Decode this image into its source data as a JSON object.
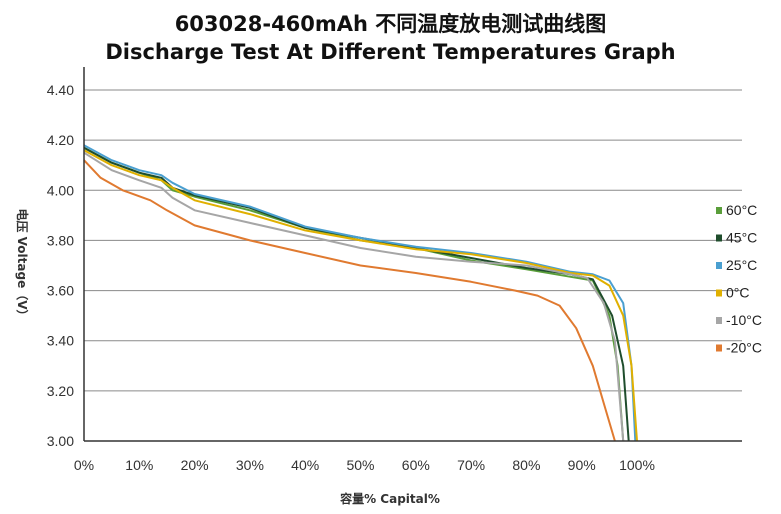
{
  "chart_data": {
    "type": "line",
    "title": "603028-460mAh 不同温度放电测试曲线图",
    "subtitle": "Discharge Test At Different Temperatures Graph",
    "xlabel": "容量% Capital%",
    "ylabel": "电压 Voltage（V）",
    "xlim": [
      0,
      100
    ],
    "ylim": [
      3.0,
      4.4
    ],
    "x_ticks": [
      "0%",
      "10%",
      "20%",
      "30%",
      "40%",
      "50%",
      "60%",
      "70%",
      "80%",
      "90%",
      "100%"
    ],
    "y_ticks": [
      "3.00",
      "3.20",
      "3.40",
      "3.60",
      "3.80",
      "4.00",
      "4.20",
      "4.40"
    ],
    "grid": "horizontal",
    "legend_position": "right",
    "series": [
      {
        "name": "60°C",
        "color": "#5a9e3a",
        "points": [
          [
            0,
            4.17
          ],
          [
            5,
            4.11
          ],
          [
            10,
            4.07
          ],
          [
            14,
            4.04
          ],
          [
            16,
            4.0
          ],
          [
            20,
            3.975
          ],
          [
            30,
            3.92
          ],
          [
            40,
            3.85
          ],
          [
            50,
            3.8
          ],
          [
            60,
            3.77
          ],
          [
            70,
            3.72
          ],
          [
            80,
            3.685
          ],
          [
            88,
            3.655
          ],
          [
            92,
            3.64
          ],
          [
            95,
            3.5
          ],
          [
            96.5,
            3.3
          ],
          [
            97.5,
            3.0
          ]
        ]
      },
      {
        "name": "45°C",
        "color": "#1f4d2c",
        "points": [
          [
            0,
            4.17
          ],
          [
            5,
            4.11
          ],
          [
            10,
            4.07
          ],
          [
            14,
            4.05
          ],
          [
            16,
            4.01
          ],
          [
            20,
            3.98
          ],
          [
            30,
            3.93
          ],
          [
            40,
            3.85
          ],
          [
            50,
            3.81
          ],
          [
            60,
            3.77
          ],
          [
            70,
            3.73
          ],
          [
            80,
            3.69
          ],
          [
            88,
            3.665
          ],
          [
            92,
            3.645
          ],
          [
            95.5,
            3.5
          ],
          [
            97.5,
            3.3
          ],
          [
            98.5,
            3.0
          ]
        ]
      },
      {
        "name": "25°C",
        "color": "#4a9fd0",
        "points": [
          [
            0,
            4.18
          ],
          [
            5,
            4.12
          ],
          [
            10,
            4.08
          ],
          [
            14,
            4.06
          ],
          [
            16,
            4.03
          ],
          [
            20,
            3.985
          ],
          [
            30,
            3.935
          ],
          [
            40,
            3.855
          ],
          [
            50,
            3.81
          ],
          [
            60,
            3.775
          ],
          [
            70,
            3.75
          ],
          [
            80,
            3.715
          ],
          [
            88,
            3.675
          ],
          [
            92,
            3.665
          ],
          [
            95,
            3.64
          ],
          [
            97.5,
            3.55
          ],
          [
            99,
            3.3
          ],
          [
            99.7,
            3.0
          ]
        ]
      },
      {
        "name": "0°C",
        "color": "#e0b000",
        "points": [
          [
            0,
            4.16
          ],
          [
            5,
            4.1
          ],
          [
            10,
            4.06
          ],
          [
            14,
            4.04
          ],
          [
            16,
            4.01
          ],
          [
            20,
            3.96
          ],
          [
            30,
            3.905
          ],
          [
            40,
            3.84
          ],
          [
            50,
            3.8
          ],
          [
            60,
            3.765
          ],
          [
            70,
            3.745
          ],
          [
            80,
            3.71
          ],
          [
            88,
            3.67
          ],
          [
            92,
            3.66
          ],
          [
            95,
            3.62
          ],
          [
            97.5,
            3.5
          ],
          [
            99,
            3.3
          ],
          [
            100,
            3.0
          ]
        ]
      },
      {
        "name": "-10°C",
        "color": "#a6a6a6",
        "points": [
          [
            0,
            4.15
          ],
          [
            5,
            4.08
          ],
          [
            10,
            4.04
          ],
          [
            14,
            4.01
          ],
          [
            16,
            3.97
          ],
          [
            20,
            3.92
          ],
          [
            30,
            3.87
          ],
          [
            40,
            3.82
          ],
          [
            50,
            3.77
          ],
          [
            60,
            3.735
          ],
          [
            70,
            3.715
          ],
          [
            80,
            3.7
          ],
          [
            88,
            3.665
          ],
          [
            91,
            3.65
          ],
          [
            94,
            3.55
          ],
          [
            96,
            3.4
          ],
          [
            97.5,
            3.0
          ]
        ]
      },
      {
        "name": "-20°C",
        "color": "#e07a30",
        "points": [
          [
            0,
            4.12
          ],
          [
            3,
            4.05
          ],
          [
            7,
            4.0
          ],
          [
            12,
            3.96
          ],
          [
            15,
            3.92
          ],
          [
            20,
            3.86
          ],
          [
            30,
            3.8
          ],
          [
            40,
            3.75
          ],
          [
            50,
            3.7
          ],
          [
            60,
            3.67
          ],
          [
            70,
            3.635
          ],
          [
            78,
            3.6
          ],
          [
            82,
            3.58
          ],
          [
            86,
            3.54
          ],
          [
            89,
            3.45
          ],
          [
            92,
            3.3
          ],
          [
            94,
            3.15
          ],
          [
            96,
            3.0
          ]
        ]
      }
    ]
  }
}
